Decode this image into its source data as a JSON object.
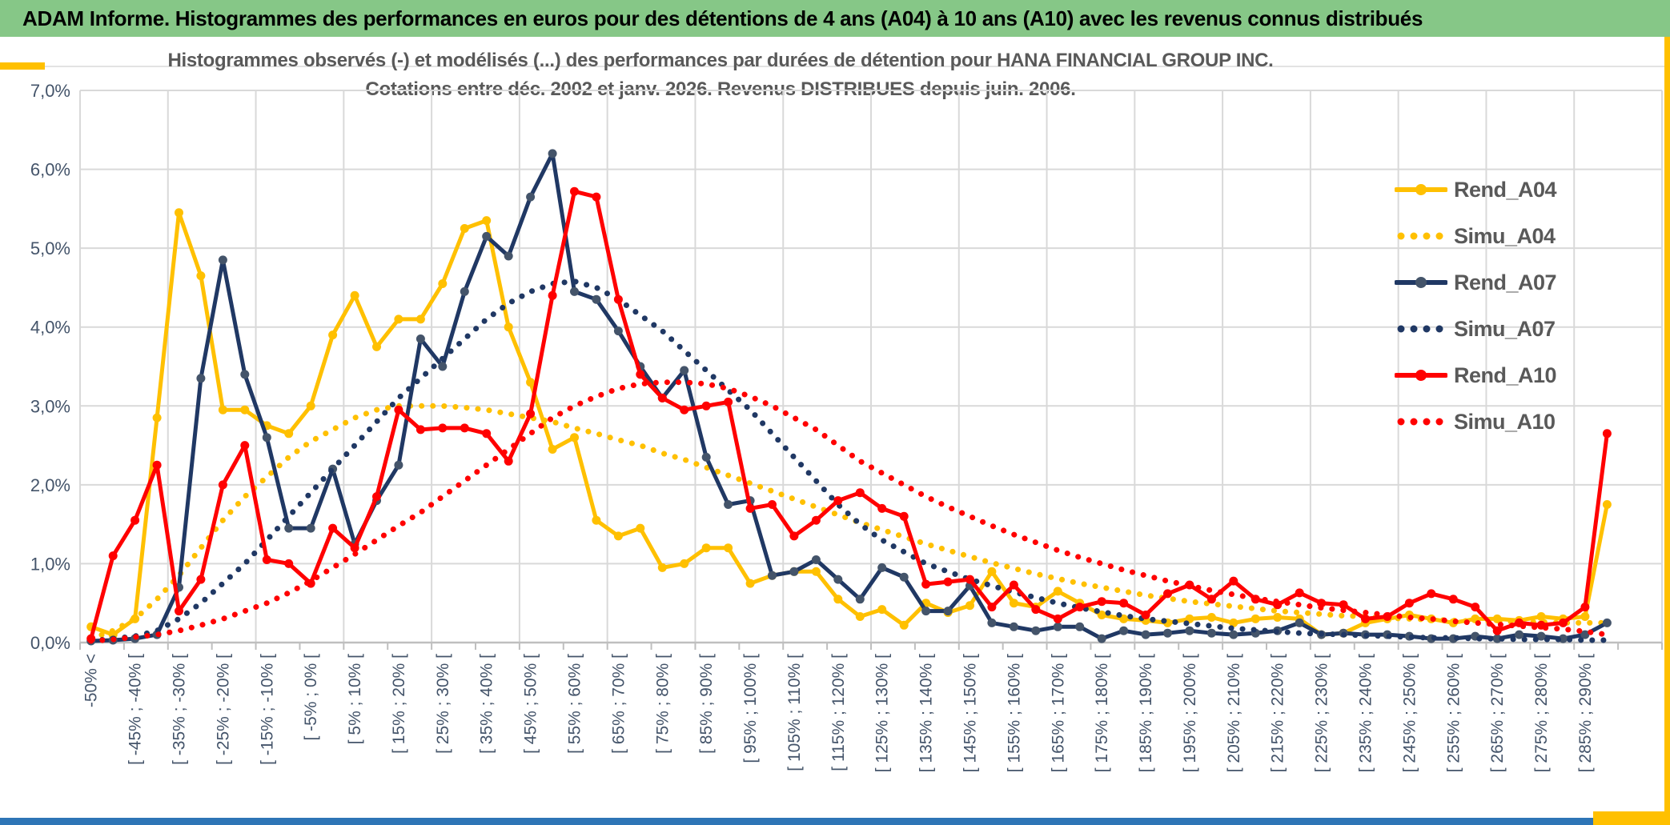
{
  "banner": {
    "title": "ADAM Informe. Histogrammes des performances en euros pour des détentions de 4 ans (A04) à 10 ans (A10) avec les revenus connus distribués"
  },
  "chart": {
    "title_line1": "Histogrammes observés (-) et modélisés (...) des performances par durées de détention pour HANA FINANCIAL GROUP INC.",
    "title_line2": "Cotations entre déc. 2002 et janv. 2026. Revenus DISTRIBUES depuis juin. 2006.",
    "y_ticks": [
      "7,0%",
      "6,0%",
      "5,0%",
      "4,0%",
      "3,0%",
      "2,0%",
      "1,0%",
      "0,0%"
    ]
  },
  "colors": {
    "banner_green": "#86C787",
    "gold": "#FFC000",
    "navy": "#203864",
    "navy_marker": "#44546A",
    "red": "#FF0000",
    "grid": "#D9D9D9",
    "axis": "#BFBFBF",
    "tick_text": "#44546A",
    "title_text": "#595959",
    "bottom_blue": "#2E75B6"
  },
  "chart_data": {
    "type": "line",
    "title": "Histogrammes observés (-) et modélisés (...) des performances par durées de détention pour HANA FINANCIAL GROUP INC. Cotations entre déc. 2002 et janv. 2026. Revenus DISTRIBUES depuis juin. 2006.",
    "ylabel": "",
    "xlabel": "",
    "ylim_percent": [
      0,
      7
    ],
    "y_tick_step_percent": 1,
    "grid": true,
    "legend_position": "right-inside",
    "num_bins": 70,
    "bin_width_percent": 5,
    "x_tick_labels": [
      "-50% <",
      "[ -45% ; -40% [",
      "[ -35% ; -30% [",
      "[ -25% ; -20% [",
      "[ -15% ; -10% [",
      "[ -5% ; 0% [",
      "[ 5% ; 10% [",
      "[ 15% ; 20% [",
      "[ 25% ; 30% [",
      "[ 35% ; 40% [",
      "[ 45% ; 50% [",
      "[ 55% ; 60% [",
      "[ 65% ; 70% [",
      "[ 75% ; 80% [",
      "[ 85% ; 90% [",
      "[ 95% ; 100% [",
      "[ 105% ; 110% [",
      "[ 115% ; 120% [",
      "[ 125% ; 130% [",
      "[ 135% ; 140% [",
      "[ 145% ; 150% [",
      "[ 155% ; 160% [",
      "[ 165% ; 170% [",
      "[ 175% ; 180% [",
      "[ 185% ; 190% [",
      "[ 195% ; 200% [",
      "[ 205% ; 210% [",
      "[ 215% ; 220% [",
      "[ 225% ; 230% [",
      "[ 235% ; 240% [",
      "[ 245% ; 250% [",
      "[ 255% ; 260% [",
      "[ 265% ; 270% [",
      "[ 275% ; 280% [",
      "[ 285% ; 290% ["
    ],
    "series": [
      {
        "name": "Rend_A04",
        "style": "solid",
        "color": "#FFC000",
        "marker_color": "#FFC000",
        "values": [
          0.2,
          0.1,
          0.3,
          2.85,
          5.45,
          4.65,
          2.95,
          2.95,
          2.75,
          2.65,
          3.0,
          3.9,
          4.4,
          3.75,
          4.1,
          4.1,
          4.55,
          5.25,
          5.35,
          4.0,
          3.3,
          2.45,
          2.6,
          1.55,
          1.35,
          1.45,
          0.95,
          1.0,
          1.2,
          1.2,
          0.75,
          0.85,
          0.9,
          0.9,
          0.55,
          0.33,
          0.42,
          0.22,
          0.5,
          0.38,
          0.47,
          0.9,
          0.5,
          0.45,
          0.65,
          0.5,
          0.35,
          0.3,
          0.28,
          0.25,
          0.3,
          0.32,
          0.25,
          0.3,
          0.32,
          0.3,
          0.1,
          0.12,
          0.25,
          0.3,
          0.35,
          0.3,
          0.25,
          0.3,
          0.3,
          0.28,
          0.33,
          0.3,
          0.33,
          1.75
        ]
      },
      {
        "name": "Simu_A04",
        "style": "dotted",
        "color": "#FFC000",
        "marker_color": "#FFC000",
        "values": [
          0.05,
          0.15,
          0.3,
          0.55,
          0.85,
          1.2,
          1.55,
          1.85,
          2.1,
          2.35,
          2.55,
          2.7,
          2.85,
          2.95,
          3.0,
          3.0,
          3.0,
          2.98,
          2.95,
          2.9,
          2.85,
          2.8,
          2.72,
          2.65,
          2.57,
          2.5,
          2.4,
          2.32,
          2.22,
          2.12,
          2.02,
          1.92,
          1.82,
          1.72,
          1.62,
          1.52,
          1.43,
          1.34,
          1.25,
          1.17,
          1.09,
          1.01,
          0.94,
          0.87,
          0.81,
          0.75,
          0.7,
          0.65,
          0.6,
          0.56,
          0.52,
          0.49,
          0.46,
          0.43,
          0.4,
          0.38,
          0.36,
          0.34,
          0.33,
          0.31,
          0.3,
          0.29,
          0.28,
          0.27,
          0.27,
          0.26,
          0.26,
          0.25,
          0.25,
          0.25
        ]
      },
      {
        "name": "Rend_A07",
        "style": "solid",
        "color": "#203864",
        "marker_color": "#44546A",
        "values": [
          0.02,
          0.03,
          0.05,
          0.1,
          0.7,
          3.35,
          4.85,
          3.4,
          2.6,
          1.45,
          1.45,
          2.2,
          1.25,
          1.8,
          2.25,
          3.85,
          3.5,
          4.45,
          5.15,
          4.9,
          5.65,
          6.2,
          4.45,
          4.35,
          3.95,
          3.5,
          3.1,
          3.45,
          2.35,
          1.75,
          1.8,
          0.85,
          0.9,
          1.05,
          0.8,
          0.55,
          0.95,
          0.83,
          0.4,
          0.4,
          0.72,
          0.25,
          0.2,
          0.15,
          0.2,
          0.2,
          0.05,
          0.15,
          0.1,
          0.12,
          0.15,
          0.12,
          0.1,
          0.12,
          0.15,
          0.25,
          0.1,
          0.12,
          0.1,
          0.1,
          0.08,
          0.05,
          0.05,
          0.08,
          0.05,
          0.1,
          0.08,
          0.05,
          0.1,
          0.25
        ]
      },
      {
        "name": "Simu_A07",
        "style": "dotted",
        "color": "#203864",
        "marker_color": "#203864",
        "values": [
          0.02,
          0.05,
          0.08,
          0.15,
          0.3,
          0.5,
          0.75,
          1.0,
          1.3,
          1.6,
          1.9,
          2.2,
          2.5,
          2.8,
          3.1,
          3.35,
          3.6,
          3.85,
          4.1,
          4.3,
          4.45,
          4.55,
          4.58,
          4.5,
          4.35,
          4.15,
          3.95,
          3.7,
          3.45,
          3.2,
          2.95,
          2.65,
          2.35,
          2.05,
          1.75,
          1.5,
          1.3,
          1.15,
          1.0,
          0.9,
          0.8,
          0.72,
          0.64,
          0.57,
          0.5,
          0.44,
          0.39,
          0.34,
          0.3,
          0.27,
          0.24,
          0.21,
          0.18,
          0.16,
          0.14,
          0.12,
          0.11,
          0.1,
          0.09,
          0.08,
          0.07,
          0.06,
          0.06,
          0.05,
          0.05,
          0.04,
          0.04,
          0.04,
          0.03,
          0.03
        ]
      },
      {
        "name": "Rend_A10",
        "style": "solid",
        "color": "#FF0000",
        "marker_color": "#FF0000",
        "values": [
          0.05,
          1.1,
          1.55,
          2.25,
          0.4,
          0.8,
          2.0,
          2.5,
          1.05,
          1.0,
          0.75,
          1.45,
          1.2,
          1.85,
          2.95,
          2.7,
          2.72,
          2.72,
          2.65,
          2.3,
          2.9,
          4.4,
          5.72,
          5.65,
          4.35,
          3.4,
          3.1,
          2.95,
          3.0,
          3.05,
          1.7,
          1.75,
          1.35,
          1.55,
          1.8,
          1.9,
          1.7,
          1.6,
          0.74,
          0.77,
          0.8,
          0.45,
          0.73,
          0.42,
          0.3,
          0.45,
          0.52,
          0.5,
          0.35,
          0.62,
          0.73,
          0.55,
          0.78,
          0.55,
          0.48,
          0.63,
          0.5,
          0.48,
          0.3,
          0.33,
          0.5,
          0.62,
          0.55,
          0.45,
          0.15,
          0.25,
          0.22,
          0.25,
          0.45,
          2.65
        ]
      },
      {
        "name": "Simu_A10",
        "style": "dotted",
        "color": "#FF0000",
        "marker_color": "#FF0000",
        "values": [
          0.02,
          0.04,
          0.07,
          0.1,
          0.15,
          0.22,
          0.3,
          0.4,
          0.5,
          0.63,
          0.78,
          0.95,
          1.12,
          1.3,
          1.48,
          1.65,
          1.85,
          2.05,
          2.25,
          2.45,
          2.65,
          2.85,
          3.0,
          3.12,
          3.22,
          3.28,
          3.3,
          3.3,
          3.28,
          3.22,
          3.12,
          3.0,
          2.85,
          2.7,
          2.5,
          2.3,
          2.15,
          2.0,
          1.85,
          1.72,
          1.6,
          1.48,
          1.37,
          1.27,
          1.17,
          1.08,
          1.0,
          0.92,
          0.85,
          0.78,
          0.72,
          0.66,
          0.61,
          0.56,
          0.52,
          0.48,
          0.44,
          0.41,
          0.38,
          0.35,
          0.32,
          0.3,
          0.27,
          0.25,
          0.23,
          0.21,
          0.19,
          0.17,
          0.14,
          0.1
        ]
      }
    ]
  }
}
